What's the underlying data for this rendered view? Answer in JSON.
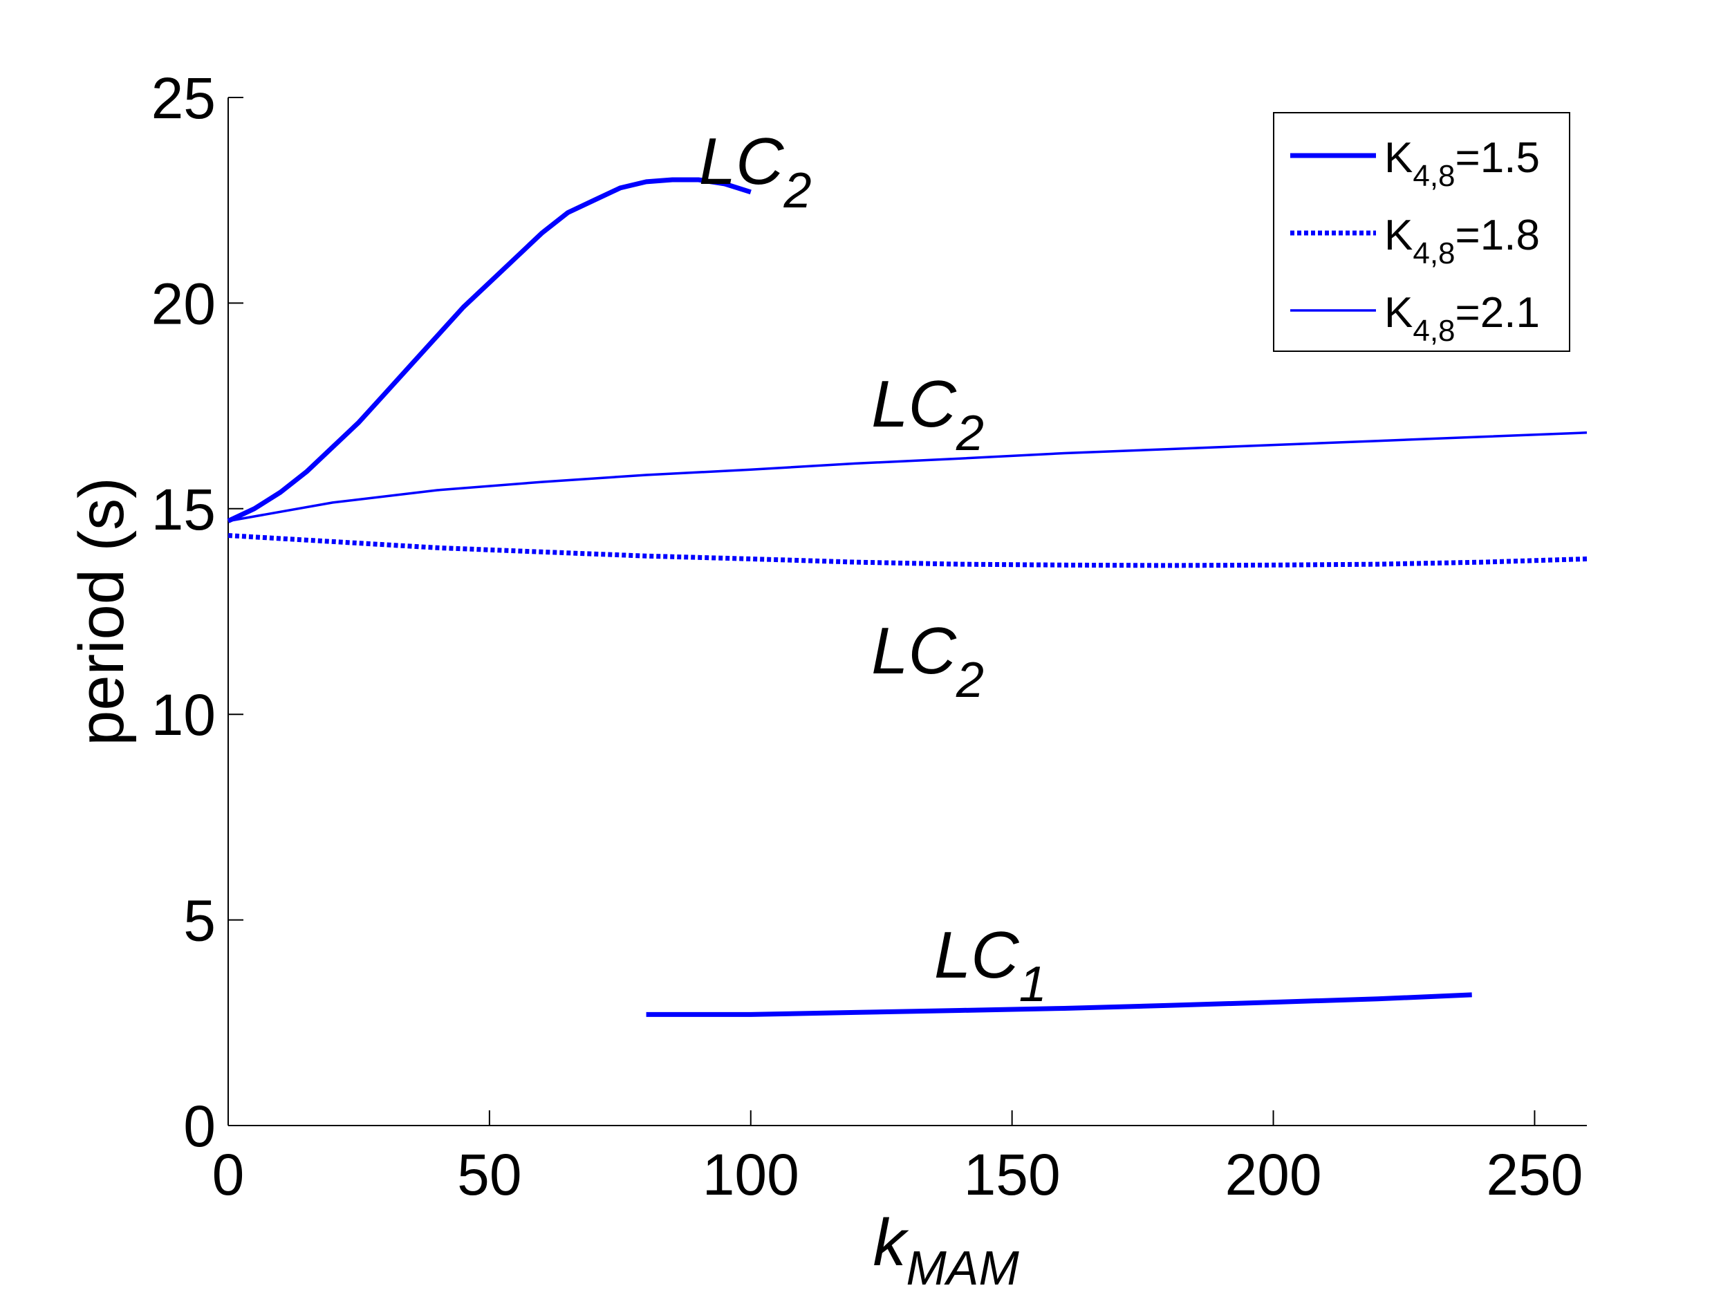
{
  "chart_data": {
    "type": "line",
    "xlabel": {
      "main": "k",
      "sub": "MAM"
    },
    "ylabel": "period (s)",
    "xlim": [
      0,
      260
    ],
    "ylim": [
      0,
      25
    ],
    "xticks": [
      0,
      50,
      100,
      150,
      200,
      250
    ],
    "yticks": [
      0,
      5,
      10,
      15,
      20,
      25
    ],
    "grid": false,
    "legend_position": "top-right",
    "series": [
      {
        "name": {
          "main": "K",
          "sub": "4,8",
          "rest": "=1.5"
        },
        "style": "solid-thick",
        "color": "#0000ff",
        "segments": [
          [
            [
              0,
              14.7
            ],
            [
              5,
              15.0
            ],
            [
              10,
              15.4
            ],
            [
              15,
              15.9
            ],
            [
              20,
              16.5
            ],
            [
              25,
              17.1
            ],
            [
              30,
              17.8
            ],
            [
              35,
              18.5
            ],
            [
              40,
              19.2
            ],
            [
              45,
              19.9
            ],
            [
              50,
              20.5
            ],
            [
              55,
              21.1
            ],
            [
              60,
              21.7
            ],
            [
              65,
              22.2
            ],
            [
              70,
              22.5
            ],
            [
              75,
              22.8
            ],
            [
              80,
              22.95
            ],
            [
              85,
              23.0
            ],
            [
              90,
              23.0
            ],
            [
              95,
              22.9
            ],
            [
              100,
              22.7
            ]
          ],
          [
            [
              80,
              2.7
            ],
            [
              100,
              2.7
            ],
            [
              120,
              2.75
            ],
            [
              140,
              2.8
            ],
            [
              160,
              2.85
            ],
            [
              180,
              2.92
            ],
            [
              200,
              3.0
            ],
            [
              220,
              3.08
            ],
            [
              238,
              3.18
            ]
          ]
        ]
      },
      {
        "name": {
          "main": "K",
          "sub": "4,8",
          "rest": "=1.8"
        },
        "style": "dotted",
        "color": "#0000ff",
        "segments": [
          [
            [
              0,
              14.35
            ],
            [
              20,
              14.2
            ],
            [
              40,
              14.05
            ],
            [
              60,
              13.95
            ],
            [
              80,
              13.85
            ],
            [
              100,
              13.78
            ],
            [
              120,
              13.7
            ],
            [
              140,
              13.65
            ],
            [
              160,
              13.63
            ],
            [
              180,
              13.62
            ],
            [
              200,
              13.63
            ],
            [
              220,
              13.65
            ],
            [
              240,
              13.7
            ],
            [
              260,
              13.78
            ]
          ]
        ]
      },
      {
        "name": {
          "main": "K",
          "sub": "4,8",
          "rest": "=2.1"
        },
        "style": "solid-thin",
        "color": "#0000ff",
        "segments": [
          [
            [
              0,
              14.7
            ],
            [
              20,
              15.15
            ],
            [
              40,
              15.45
            ],
            [
              60,
              15.65
            ],
            [
              80,
              15.82
            ],
            [
              100,
              15.95
            ],
            [
              120,
              16.1
            ],
            [
              140,
              16.22
            ],
            [
              160,
              16.35
            ],
            [
              180,
              16.45
            ],
            [
              200,
              16.55
            ],
            [
              220,
              16.65
            ],
            [
              240,
              16.75
            ],
            [
              260,
              16.85
            ]
          ]
        ]
      }
    ],
    "annotations": [
      {
        "main": "LC",
        "sub": "2",
        "x": 100,
        "y": 23.4
      },
      {
        "main": "LC",
        "sub": "2",
        "x": 133,
        "y": 17.5
      },
      {
        "main": "LC",
        "sub": "2",
        "x": 133,
        "y": 11.5
      },
      {
        "main": "LC",
        "sub": "1",
        "x": 145,
        "y": 4.1
      }
    ]
  }
}
